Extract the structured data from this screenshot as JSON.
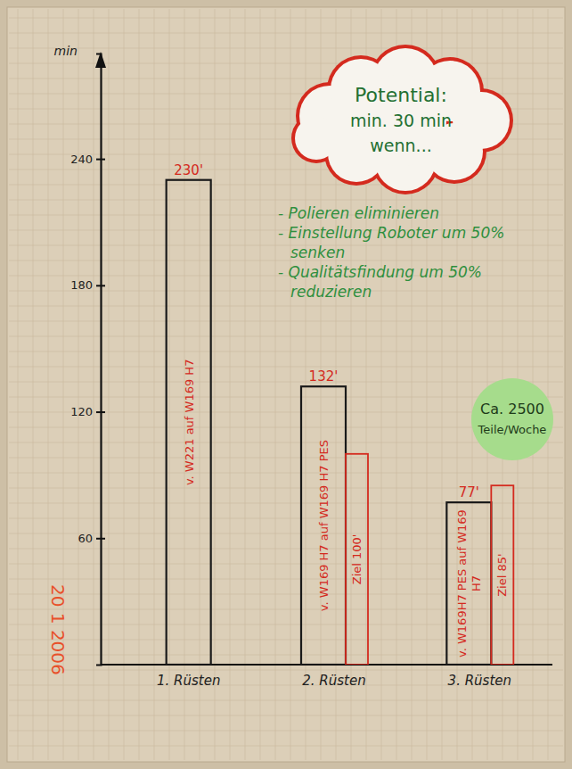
{
  "chart_data": {
    "type": "bar",
    "y_label": "min",
    "categories": [
      "1. Rüsten",
      "2. Rüsten",
      "3. Rüsten"
    ],
    "series": [
      {
        "color": "#1a1a1a",
        "values": [
          230,
          132,
          77
        ],
        "value_labels": [
          "230'",
          "132'",
          "77'"
        ],
        "bar_texts": [
          "v. W221 auf W169 H7",
          "v. W169 H7 auf W169 H7 PES",
          "v. W169H7 PES auf W169 H7"
        ]
      },
      {
        "color": "#d42a1e",
        "values": [
          null,
          100,
          85
        ],
        "value_labels": [
          null,
          "Ziel 100'",
          "Ziel 85'"
        ]
      }
    ],
    "ylim": [
      0,
      290
    ],
    "yticks": [
      60,
      120,
      180,
      240
    ],
    "data_labels": true,
    "annotations": {
      "cloud": [
        "Potential:",
        "min. 30 min",
        "wenn..."
      ],
      "bullets": [
        "- Polieren eliminieren",
        "- Einstellung Roboter um 50% senken",
        "- Qualitätsfindung um 50% reduzieren"
      ],
      "badge": [
        "Ca. 2500",
        "Teile/Woche"
      ],
      "date": "20 1 2006"
    }
  }
}
